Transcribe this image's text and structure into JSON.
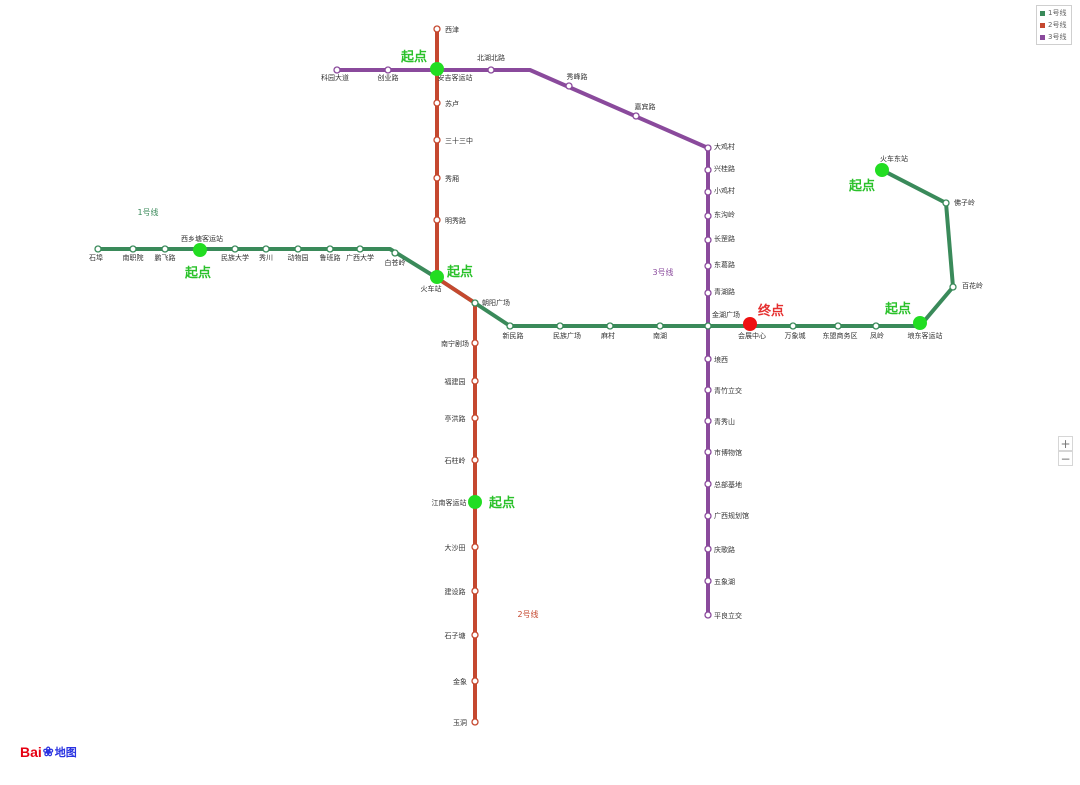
{
  "map": {
    "colors": {
      "line1": "#3a8a5a",
      "line2": "#c5482f",
      "line3": "#8a4a9c",
      "start": "#22dd22",
      "end": "#ee1111"
    },
    "line_labels": {
      "line1": "1号线",
      "line2": "2号线",
      "line3": "3号线"
    },
    "markers": {
      "start": "起点",
      "end": "终点"
    },
    "line1_stations": [
      "石埠",
      "南职院",
      "鹏飞路",
      "西乡塘客运站",
      "民族大学",
      "秀川",
      "动物园",
      "鲁班路",
      "广西大学",
      "白苍岭",
      "火车站",
      "朝阳广场",
      "新民路",
      "民族广场",
      "麻村",
      "南湖",
      "金湖广场",
      "会展中心",
      "万象城",
      "东盟商务区",
      "凤岭",
      "埌东客运站",
      "百花岭",
      "佛子岭",
      "火车东站"
    ],
    "line2_stations": [
      "西津",
      "安吉客运站",
      "苏卢",
      "三十三中",
      "秀厢",
      "明秀路",
      "火车站",
      "朝阳广场",
      "南宁剧场",
      "福建园",
      "亭洪路",
      "石柱岭",
      "江南客运站",
      "大沙田",
      "建设路",
      "石子塘",
      "金象",
      "玉洞"
    ],
    "line3_stations": [
      "科园大道",
      "创业路",
      "安吉客运站",
      "北湖北路",
      "秀峰路",
      "嘉宾路",
      "大鸡村",
      "兴桂路",
      "小鸡村",
      "东沟岭",
      "长罡路",
      "东葛路",
      "青湖路",
      "金湖广场",
      "埌西",
      "青竹立交",
      "青秀山",
      "市博物馆",
      "总部基地",
      "广西规划馆",
      "庆歌路",
      "五象湖",
      "平良立交"
    ]
  },
  "legend": {
    "items": [
      "1号线",
      "2号线",
      "3号线"
    ]
  },
  "controls": {
    "zoom_in": "+",
    "zoom_out": "−"
  },
  "logo": {
    "bai": "Bai",
    "paw": "❀",
    "du_ditu": "地图"
  }
}
